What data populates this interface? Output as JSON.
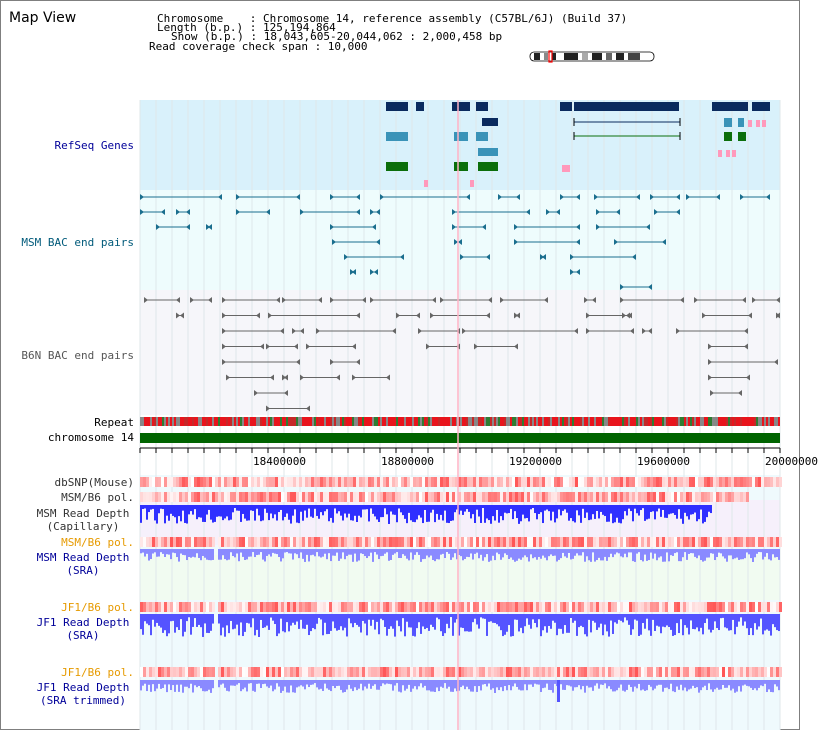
{
  "page": {
    "title": "Map View"
  },
  "header": {
    "chromosome_line": "Chromosome    : Chromosome 14, reference assembly (C57BL/6J) (Build 37)",
    "length_line": "Length (b.p.) : 125,194,864",
    "show_line": "Show (b.p.) : 18,043,605-20,044,062 : 2,000,458 bp",
    "coverage_line": "Read coverage check span : 10,000"
  },
  "tracks": {
    "refseq": "RefSeq Genes",
    "msm_bac": "MSM BAC end pairs",
    "b6n_bac": "B6N BAC end pairs",
    "repeat": "Repeat",
    "chromosome": "chromosome 14",
    "dbsnp": "dbSNP(Mouse)",
    "msm_b6_pol_1": "MSM/B6 pol.",
    "msm_read_depth_cap_1": "MSM Read Depth",
    "msm_read_depth_cap_2": "(Capillary)",
    "msm_b6_pol_2": "MSM/B6 pol.",
    "msm_read_depth_sra_1": "MSM Read Depth",
    "msm_read_depth_sra_2": "(SRA)",
    "jf1_b6_pol_1": "JF1/B6 pol.",
    "jf1_read_depth_sra_1": "JF1 Read Depth",
    "jf1_read_depth_sra_2": "(SRA)",
    "jf1_b6_pol_2": "JF1/B6 pol.",
    "jf1_read_depth_trim_1": "JF1 Read Depth",
    "jf1_read_depth_trim_2": "(SRA trimmed)"
  },
  "axis": {
    "ticks": [
      "18400000",
      "18800000",
      "19200000",
      "19600000",
      "20000000"
    ]
  },
  "colors": {
    "refseq_bg": "#d9f1fb",
    "bac_bg": "#eefcfd",
    "b6n_bg": "#f6f6fa",
    "gene_navy": "#0a2a5e",
    "gene_teal": "#3a93b8",
    "gene_green": "#0b6e0b",
    "chrom_green": "#006400",
    "depth_blue": "#3333ff",
    "pol_red": "#ff3333",
    "label_blue": "#000099",
    "label_orange": "#e69a00",
    "label_teal": "#005a7a"
  }
}
